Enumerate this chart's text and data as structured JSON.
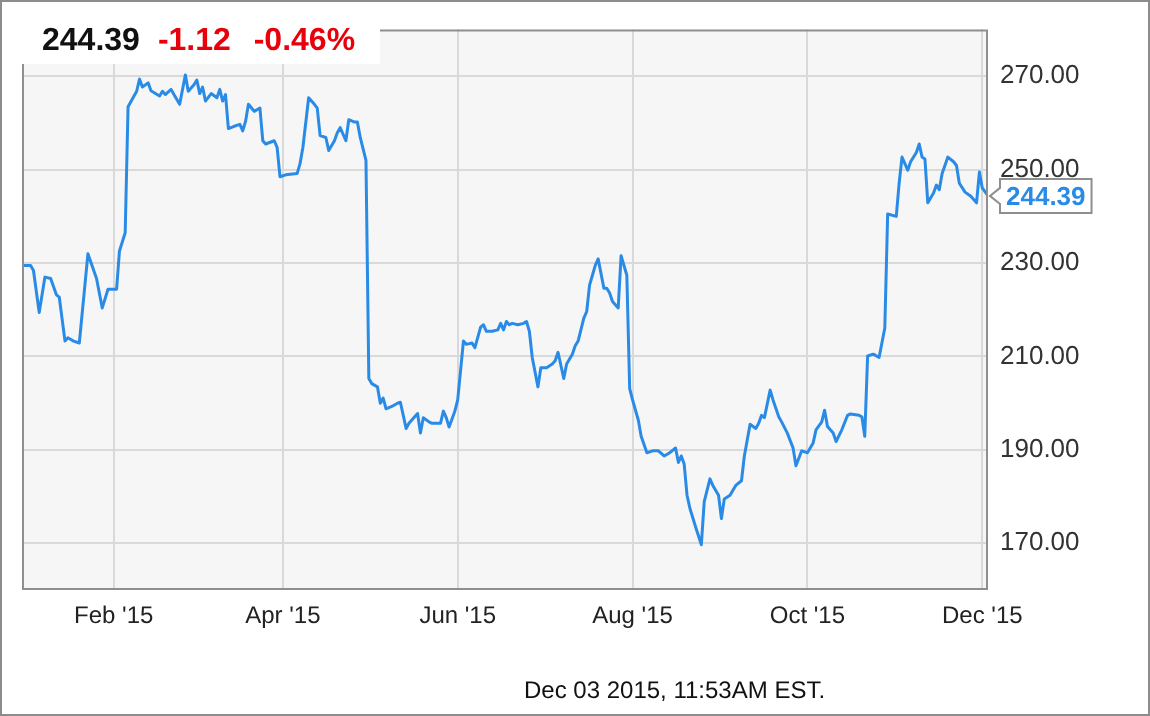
{
  "chart_data": {
    "type": "line",
    "title": "244.39",
    "subtitle": "-1.12 -0.46%",
    "annotations": [
      {
        "text": "244.39",
        "x": "2015-12-03",
        "y": 244.39
      },
      "Dec 03 2015, 11:53AM EST."
    ],
    "x": [
      "2014-12-31",
      "2015-01-03",
      "2015-01-04",
      "2015-01-06",
      "2015-01-08",
      "2015-01-10",
      "2015-01-12",
      "2015-01-13",
      "2015-01-15",
      "2015-01-16",
      "2015-01-18",
      "2015-01-20",
      "2015-01-23",
      "2015-01-26",
      "2015-01-28",
      "2015-01-30",
      "2015-02-02",
      "2015-02-03",
      "2015-02-05",
      "2015-02-06",
      "2015-02-09",
      "2015-02-10",
      "2015-02-11",
      "2015-02-13",
      "2015-02-14",
      "2015-02-17",
      "2015-02-18",
      "2015-02-19",
      "2015-02-21",
      "2015-02-22",
      "2015-02-24",
      "2015-02-26",
      "2015-02-27",
      "2015-03-01",
      "2015-03-02",
      "2015-03-03",
      "2015-03-04",
      "2015-03-05",
      "2015-03-07",
      "2015-03-09",
      "2015-03-10",
      "2015-03-11",
      "2015-03-12",
      "2015-03-13",
      "2015-03-15",
      "2015-03-17",
      "2015-03-18",
      "2015-03-19",
      "2015-03-20",
      "2015-03-22",
      "2015-03-24",
      "2015-03-25",
      "2015-03-26",
      "2015-03-29",
      "2015-03-30",
      "2015-03-31",
      "2015-04-02",
      "2015-04-06",
      "2015-04-07",
      "2015-04-08",
      "2015-04-10",
      "2015-04-12",
      "2015-04-13",
      "2015-04-14",
      "2015-04-16",
      "2015-04-17",
      "2015-04-19",
      "2015-04-20",
      "2015-04-21",
      "2015-04-23",
      "2015-04-24",
      "2015-04-26",
      "2015-04-27",
      "2015-04-28",
      "2015-04-30",
      "2015-05-01",
      "2015-05-02",
      "2015-05-04",
      "2015-05-05",
      "2015-05-06",
      "2015-05-07",
      "2015-05-09",
      "2015-05-11",
      "2015-05-12",
      "2015-05-14",
      "2015-05-15",
      "2015-05-16",
      "2015-05-18",
      "2015-05-19",
      "2015-05-20",
      "2015-05-22",
      "2015-05-23",
      "2015-05-26",
      "2015-05-27",
      "2015-05-28",
      "2015-05-29",
      "2015-05-31",
      "2015-06-01",
      "2015-06-03",
      "2015-06-04",
      "2015-06-06",
      "2015-06-07",
      "2015-06-09",
      "2015-06-10",
      "2015-06-11",
      "2015-06-13",
      "2015-06-15",
      "2015-06-16",
      "2015-06-17",
      "2015-06-18",
      "2015-06-19",
      "2015-06-20",
      "2015-06-22",
      "2015-06-24",
      "2015-06-25",
      "2015-06-26",
      "2015-06-27",
      "2015-06-29",
      "2015-06-30",
      "2015-07-02",
      "2015-07-04",
      "2015-07-05",
      "2015-07-06",
      "2015-07-08",
      "2015-07-09",
      "2015-07-11",
      "2015-07-12",
      "2015-07-13",
      "2015-07-15",
      "2015-07-16",
      "2015-07-17",
      "2015-07-18",
      "2015-07-19",
      "2015-07-20",
      "2015-07-22",
      "2015-07-23",
      "2015-07-24",
      "2015-07-25",
      "2015-07-27",
      "2015-07-28",
      "2015-07-30",
      "2015-07-31",
      "2015-08-01",
      "2015-08-03",
      "2015-08-04",
      "2015-08-06",
      "2015-08-08",
      "2015-08-10",
      "2015-08-12",
      "2015-08-14",
      "2015-08-16",
      "2015-08-17",
      "2015-08-18",
      "2015-08-19",
      "2015-08-20",
      "2015-08-21",
      "2015-08-23",
      "2015-08-25",
      "2015-08-26",
      "2015-08-28",
      "2015-08-29",
      "2015-08-31",
      "2015-09-01",
      "2015-09-02",
      "2015-09-04",
      "2015-09-06",
      "2015-09-08",
      "2015-09-09",
      "2015-09-11",
      "2015-09-13",
      "2015-09-14",
      "2015-09-15",
      "2015-09-16",
      "2015-09-18",
      "2015-09-19",
      "2015-09-21",
      "2015-09-22",
      "2015-09-24",
      "2015-09-26",
      "2015-09-27",
      "2015-09-29",
      "2015-10-01",
      "2015-10-03",
      "2015-10-04",
      "2015-10-06",
      "2015-10-07",
      "2015-10-08",
      "2015-10-10",
      "2015-10-11",
      "2015-10-13",
      "2015-10-15",
      "2015-10-16",
      "2015-10-19",
      "2015-10-20",
      "2015-10-21",
      "2015-10-22",
      "2015-10-24",
      "2015-10-26",
      "2015-10-28",
      "2015-10-29",
      "2015-11-01",
      "2015-11-02",
      "2015-11-03",
      "2015-11-05",
      "2015-11-06",
      "2015-11-08",
      "2015-11-09",
      "2015-11-10",
      "2015-11-11",
      "2015-11-12",
      "2015-11-14",
      "2015-11-15",
      "2015-11-16",
      "2015-11-17",
      "2015-11-19",
      "2015-11-21",
      "2015-11-22",
      "2015-11-23",
      "2015-11-25",
      "2015-11-27",
      "2015-11-29",
      "2015-11-30",
      "2015-12-01",
      "2015-12-03"
    ],
    "series": [
      {
        "color": "#2a8be6",
        "values": [
          229.5,
          229.5,
          228.4,
          219.4,
          227.0,
          226.7,
          223.2,
          222.7,
          213.3,
          214.0,
          213.3,
          212.9,
          232.0,
          226.7,
          220.4,
          224.4,
          224.4,
          232.6,
          236.5,
          263.5,
          266.8,
          269.4,
          267.7,
          268.6,
          266.9,
          265.8,
          266.8,
          266.1,
          267.2,
          266.1,
          264.0,
          270.3,
          266.8,
          268.2,
          269.2,
          266.3,
          267.7,
          264.7,
          266.3,
          265.4,
          267.2,
          264.7,
          266.1,
          258.8,
          259.3,
          259.7,
          258.3,
          260.4,
          264.0,
          262.5,
          263.2,
          256.2,
          255.5,
          256.2,
          254.8,
          248.5,
          248.9,
          249.2,
          251.3,
          254.8,
          265.4,
          264.0,
          263.2,
          257.3,
          256.9,
          254.1,
          256.2,
          257.9,
          259.0,
          256.2,
          260.7,
          260.2,
          260.2,
          256.9,
          252.0,
          205.3,
          204.2,
          203.5,
          200.0,
          201.1,
          198.8,
          199.3,
          200.0,
          200.2,
          194.6,
          195.7,
          196.4,
          197.8,
          193.6,
          196.9,
          196.0,
          195.7,
          195.7,
          198.3,
          196.9,
          194.9,
          198.3,
          200.7,
          213.3,
          212.6,
          212.9,
          211.9,
          216.3,
          216.8,
          215.4,
          215.4,
          215.7,
          217.1,
          215.7,
          217.5,
          216.8,
          217.1,
          216.8,
          217.1,
          217.5,
          215.4,
          209.8,
          203.5,
          207.6,
          207.6,
          208.4,
          209.1,
          210.9,
          205.3,
          208.4,
          210.5,
          212.3,
          213.3,
          218.2,
          219.6,
          225.3,
          227.4,
          229.5,
          230.9,
          224.6,
          224.6,
          223.6,
          221.8,
          220.4,
          231.6,
          227.4,
          203.1,
          200.7,
          196.4,
          192.9,
          189.4,
          189.8,
          189.8,
          188.7,
          189.4,
          190.4,
          187.3,
          188.7,
          187.0,
          180.3,
          177.5,
          173.5,
          169.7,
          178.9,
          183.8,
          182.4,
          180.3,
          175.3,
          179.5,
          180.3,
          182.4,
          183.4,
          188.7,
          195.5,
          194.6,
          195.7,
          197.4,
          196.9,
          202.8,
          200.7,
          197.1,
          196.0,
          193.6,
          190.4,
          186.6,
          189.8,
          189.4,
          191.5,
          194.3,
          196.0,
          198.5,
          195.0,
          193.6,
          191.8,
          194.3,
          197.4,
          197.7,
          197.4,
          197.1,
          192.9,
          210.1,
          210.5,
          209.8,
          216.1,
          240.5,
          240.0,
          247.1,
          252.7,
          249.9,
          251.7,
          253.7,
          255.5,
          252.7,
          252.3,
          242.9,
          245.0,
          246.7,
          245.7,
          249.2,
          252.7,
          251.7,
          250.9,
          247.1,
          245.2,
          244.3,
          242.9,
          249.5,
          246.1,
          244.39
        ]
      }
    ],
    "xlim": [
      "2014-12-31",
      "2015-12-03"
    ],
    "xticks": [
      {
        "value": "2015-02-01",
        "label": "Feb '15"
      },
      {
        "value": "2015-04-01",
        "label": "Apr '15"
      },
      {
        "value": "2015-06-01",
        "label": "Jun '15"
      },
      {
        "value": "2015-08-01",
        "label": "Aug '15"
      },
      {
        "value": "2015-10-01",
        "label": "Oct '15"
      },
      {
        "value": "2015-12-01",
        "label": "Dec '15"
      }
    ],
    "ylim": [
      160,
      280
    ],
    "yticks": [
      {
        "value": 170,
        "label": "170.00"
      },
      {
        "value": 190,
        "label": "190.00"
      },
      {
        "value": 210,
        "label": "210.00"
      },
      {
        "value": 230,
        "label": "230.00"
      },
      {
        "value": 250,
        "label": "250.00"
      },
      {
        "value": 270,
        "label": "270.00"
      }
    ],
    "grid": true,
    "marker": "none"
  }
}
